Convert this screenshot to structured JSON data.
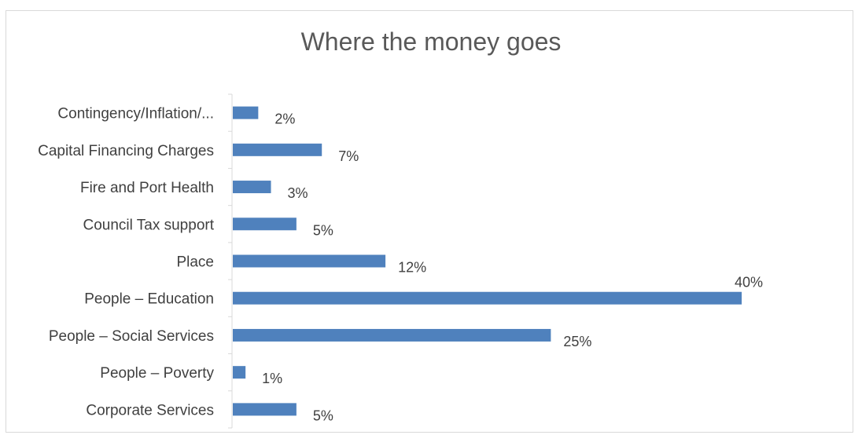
{
  "chart_data": {
    "type": "bar",
    "orientation": "horizontal",
    "title": "Where the money goes",
    "categories": [
      "Contingency/Inflation/...",
      "Capital Financing Charges",
      "Fire and Port Health",
      "Council Tax support",
      "Place",
      "People – Education",
      "People – Social Services",
      "People – Poverty",
      "Corporate Services"
    ],
    "values": [
      2,
      7,
      3,
      5,
      12,
      40,
      25,
      1,
      5
    ],
    "value_labels": [
      "2%",
      "7%",
      "3%",
      "5%",
      "12%",
      "40%",
      "25%",
      "1%",
      "5%"
    ],
    "bar_color": "#4f81bd",
    "xlim": [
      0,
      40
    ],
    "grid": false,
    "legend": "none"
  }
}
